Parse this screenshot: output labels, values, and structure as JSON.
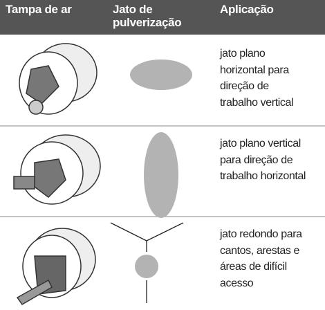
{
  "header": {
    "cols": [
      "Tampa de ar",
      [
        "Jato de",
        "pulverização"
      ],
      "Aplicação"
    ]
  },
  "rows": [
    {
      "application": [
        "jato plano",
        "horizontal para",
        "direção de",
        "trabalho vertical"
      ]
    },
    {
      "application": [
        "jato plano vertical",
        "para direção de",
        "trabalho horizontal"
      ]
    },
    {
      "application": [
        "jato redondo para",
        "cantos, arestas e",
        "áreas de difícil",
        "acesso"
      ]
    }
  ]
}
